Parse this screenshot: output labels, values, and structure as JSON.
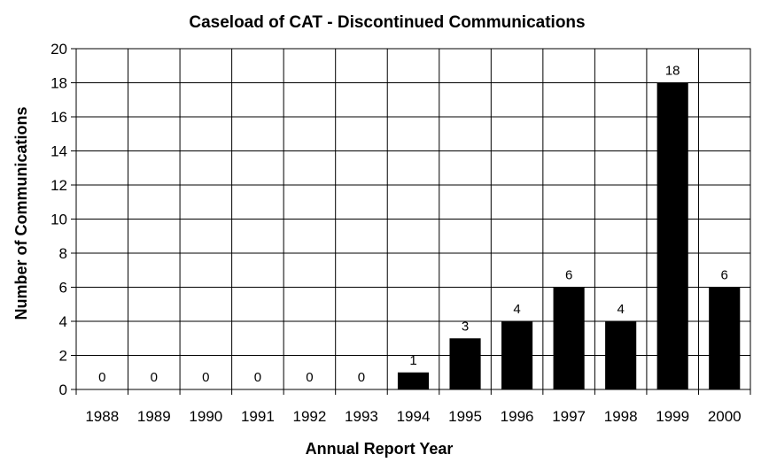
{
  "chart_data": {
    "type": "bar",
    "title": "Caseload of CAT - Discontinued Communications",
    "xlabel": "Annual Report Year",
    "ylabel": "Number of Communications",
    "categories": [
      "1988",
      "1989",
      "1990",
      "1991",
      "1992",
      "1993",
      "1994",
      "1995",
      "1996",
      "1997",
      "1998",
      "1999",
      "2000"
    ],
    "values": [
      0,
      0,
      0,
      0,
      0,
      0,
      1,
      3,
      4,
      6,
      4,
      18,
      6
    ],
    "data_labels": [
      "0",
      "0",
      "0",
      "0",
      "0",
      "0",
      "1",
      "3",
      "4",
      "6",
      "4",
      "18",
      "6"
    ],
    "yticks": [
      "0",
      "2",
      "4",
      "6",
      "8",
      "10",
      "12",
      "14",
      "16",
      "18",
      "20"
    ],
    "ylim": [
      0,
      20
    ],
    "grid": true,
    "bar_color": "#000000",
    "legend": "none"
  }
}
